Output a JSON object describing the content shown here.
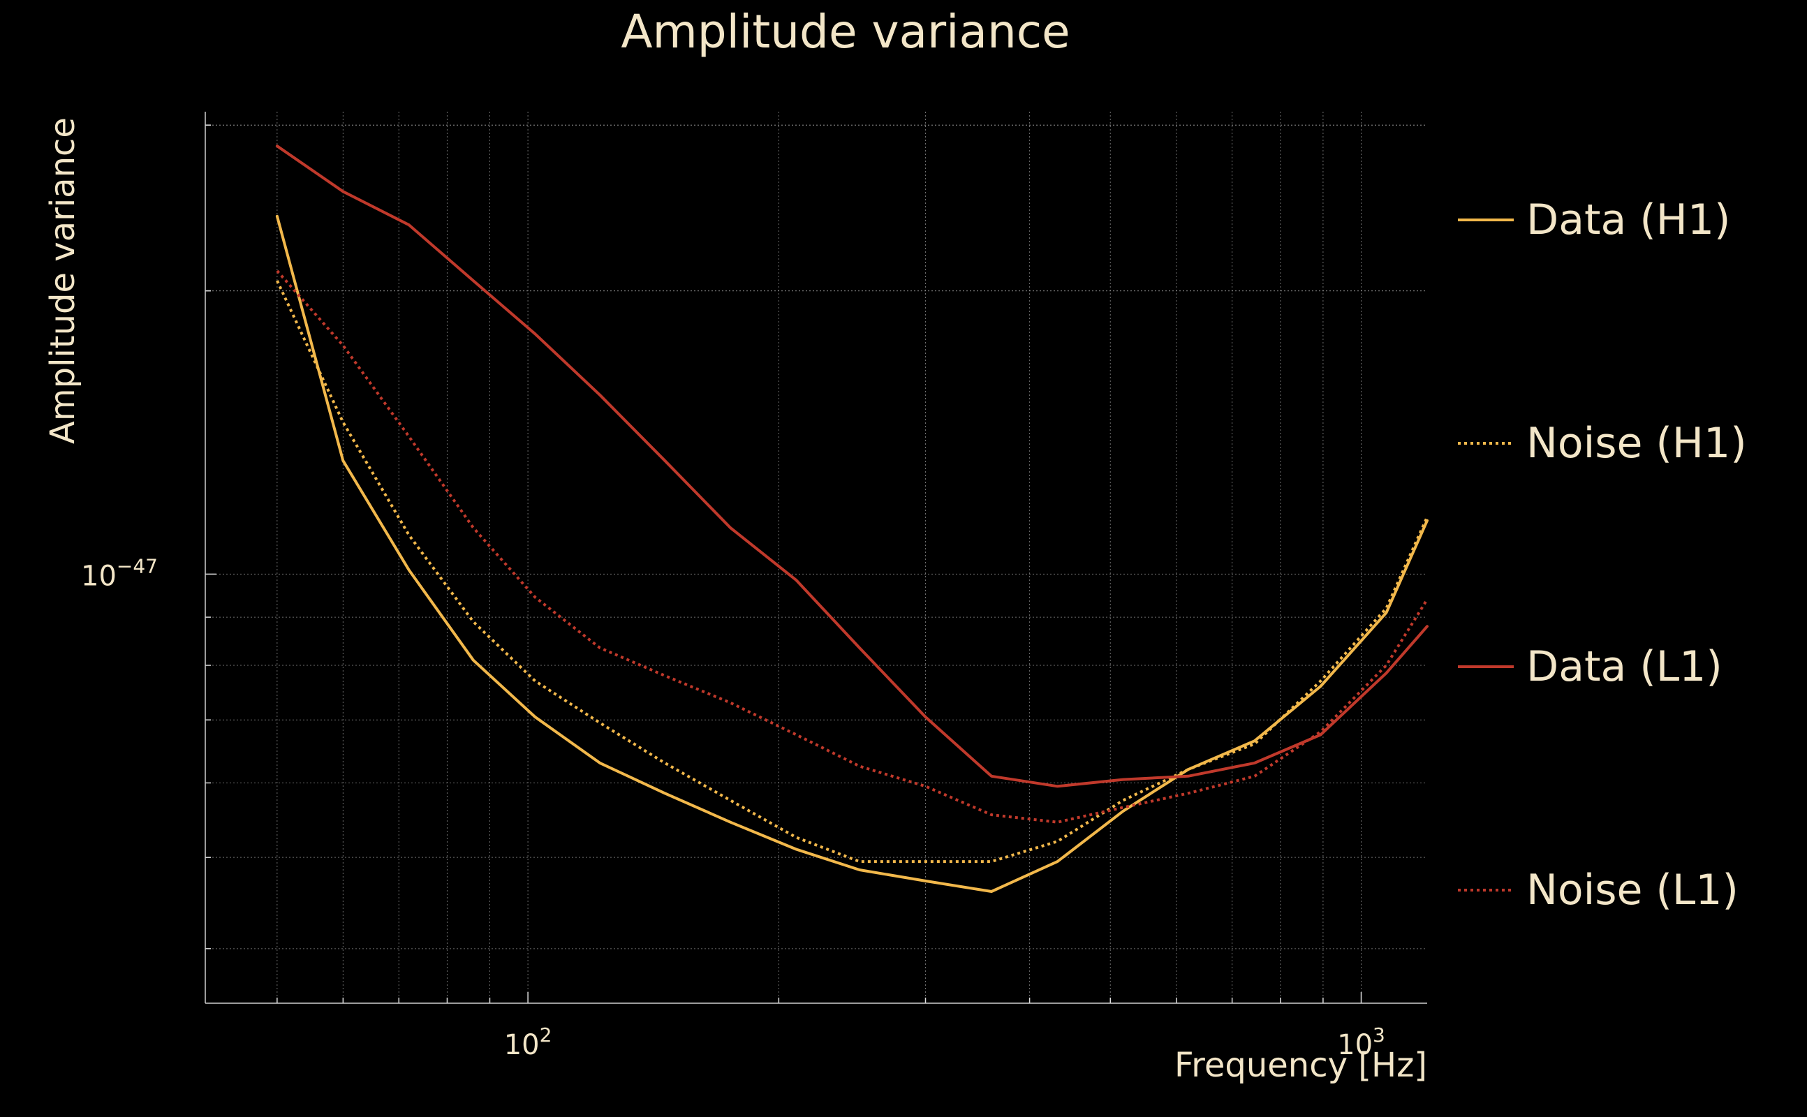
{
  "chart_data": {
    "type": "line",
    "title": "Amplitude variance",
    "xlabel": "Frequency [Hz]",
    "ylabel": "Amplitude variance",
    "xscale": "log",
    "yscale": "log",
    "xlim": [
      41,
      1200
    ],
    "ylim": [
      3.5e-48,
      3.1e-47
    ],
    "x_ticks": [
      {
        "value": 100,
        "base": "10",
        "exp": "2"
      },
      {
        "value": 1000,
        "base": "10",
        "exp": "3"
      }
    ],
    "y_ticks": [
      {
        "value": 1e-47,
        "base": "10",
        "exp": "−47"
      }
    ],
    "grid": true,
    "legend_position": "right",
    "series": [
      {
        "name": "Data (H1)",
        "color": "#f2b84b",
        "style": "solid",
        "x": [
          50,
          60,
          72,
          86,
          102,
          122,
          146,
          175,
          210,
          250,
          300,
          360,
          432,
          518,
          620,
          745,
          894,
          1072,
          1200
        ],
        "y": [
          2.4e-47,
          1.32e-47,
          1.01e-47,
          8.1e-48,
          7.05e-48,
          6.3e-48,
          5.85e-48,
          5.45e-48,
          5.1e-48,
          4.85e-48,
          4.72e-48,
          4.6e-48,
          4.95e-48,
          5.6e-48,
          6.2e-48,
          6.65e-48,
          7.6e-48,
          9.1e-48,
          1.14e-47
        ]
      },
      {
        "name": "Noise (H1)",
        "color": "#f2b84b",
        "style": "dotted",
        "x": [
          50,
          60,
          72,
          86,
          102,
          122,
          146,
          175,
          210,
          250,
          300,
          360,
          432,
          518,
          620,
          745,
          894,
          1072,
          1200
        ],
        "y": [
          2.05e-47,
          1.45e-47,
          1.1e-47,
          8.9e-48,
          7.7e-48,
          6.95e-48,
          6.3e-48,
          5.75e-48,
          5.25e-48,
          4.95e-48,
          4.95e-48,
          4.95e-48,
          5.2e-48,
          5.75e-48,
          6.2e-48,
          6.6e-48,
          7.7e-48,
          9.2e-48,
          1.15e-47
        ]
      },
      {
        "name": "Data (L1)",
        "color": "#c0392b",
        "style": "solid",
        "x": [
          50,
          60,
          72,
          86,
          102,
          122,
          146,
          175,
          210,
          250,
          300,
          360,
          432,
          518,
          620,
          745,
          894,
          1072,
          1200
        ],
        "y": [
          2.85e-47,
          2.55e-47,
          2.35e-47,
          2.05e-47,
          1.8e-47,
          1.55e-47,
          1.32e-47,
          1.12e-47,
          9.85e-48,
          8.35e-48,
          7.05e-48,
          6.1e-48,
          5.95e-48,
          6.05e-48,
          6.1e-48,
          6.3e-48,
          6.75e-48,
          7.85e-48,
          8.8e-48
        ]
      },
      {
        "name": "Noise (L1)",
        "color": "#c0392b",
        "style": "dotted",
        "x": [
          50,
          60,
          72,
          86,
          102,
          122,
          146,
          175,
          210,
          250,
          300,
          360,
          432,
          518,
          620,
          745,
          894,
          1072,
          1200
        ],
        "y": [
          2.1e-47,
          1.75e-47,
          1.4e-47,
          1.12e-47,
          9.45e-48,
          8.35e-48,
          7.8e-48,
          7.3e-48,
          6.75e-48,
          6.25e-48,
          5.95e-48,
          5.55e-48,
          5.45e-48,
          5.65e-48,
          5.85e-48,
          6.1e-48,
          6.8e-48,
          8e-48,
          9.4e-48
        ]
      }
    ]
  }
}
